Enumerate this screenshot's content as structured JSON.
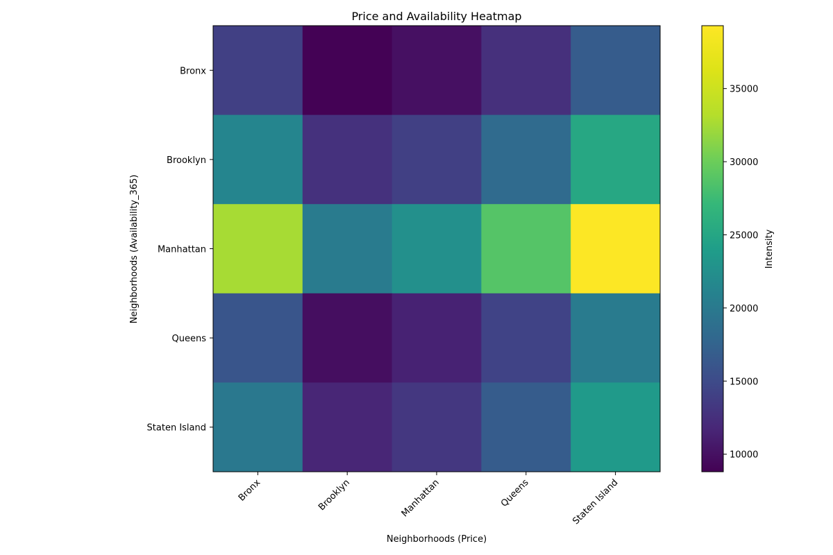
{
  "chart_data": {
    "type": "heatmap",
    "title": "Price and Availability Heatmap",
    "xlabel": "Neighborhoods (Price)",
    "ylabel": "Neighborhoods (Availability_365)",
    "x_categories": [
      "Bronx",
      "Brooklyn",
      "Manhattan",
      "Queens",
      "Staten Island"
    ],
    "y_categories": [
      "Bronx",
      "Brooklyn",
      "Manhattan",
      "Queens",
      "Staten Island"
    ],
    "values": [
      [
        14000,
        8900,
        10000,
        12600,
        16700
      ],
      [
        21300,
        12700,
        14000,
        18300,
        25200
      ],
      [
        32600,
        20200,
        22500,
        28800,
        39200
      ],
      [
        16000,
        9800,
        11400,
        14300,
        20200
      ],
      [
        19800,
        11700,
        13200,
        16700,
        23600
      ]
    ],
    "colorbar": {
      "label": "Intensity",
      "vmin": 8800,
      "vmax": 39300,
      "ticks": [
        10000,
        15000,
        20000,
        25000,
        30000,
        35000
      ],
      "colormap": "viridis"
    }
  }
}
